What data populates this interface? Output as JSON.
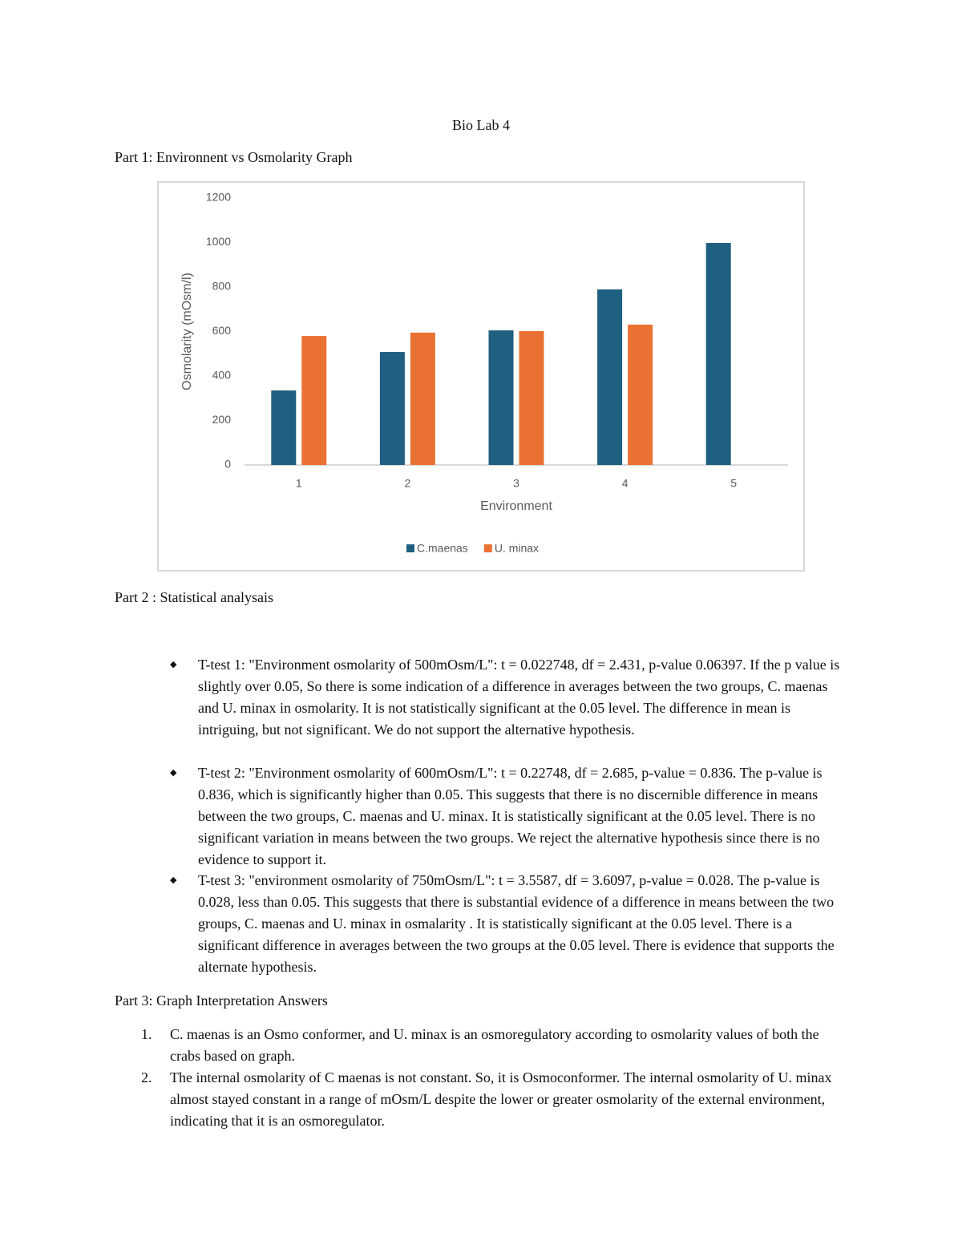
{
  "title": "Bio Lab 4",
  "part1_heading": "Part 1: Environnent vs Osmolarity Graph",
  "chart_data": {
    "type": "bar",
    "xlabel": "Environment",
    "ylabel": "Osmolarity (mOsm/l)",
    "categories": [
      "1",
      "2",
      "3",
      "4",
      "5"
    ],
    "series": [
      {
        "name": "C.maenas",
        "color": "#1f5f80",
        "values": [
          335,
          508,
          605,
          789,
          998
        ]
      },
      {
        "name": "U. minax",
        "color": "#e97132",
        "values": [
          580,
          595,
          602,
          631,
          null
        ]
      }
    ],
    "ylim": [
      0,
      1200
    ],
    "yticks": [
      0,
      200,
      400,
      600,
      800,
      1000,
      1200
    ],
    "legend": "bottom"
  },
  "part2": {
    "heading": "Part 2 : Statistical analysais",
    "bullets": [
      " T-test 1: \"Environment osmolarity of 500mOsm/L\": t = 0.022748, df = 2.431, p-value 0.06397. If the p value is slightly over 0.05, So there is some indication of a difference in averages between the two groups, C. maenas and U. minax in osmolarity. It is not statistically significant at the 0.05 level. The difference in mean is intriguing, but not significant. We do not support the alternative hypothesis.",
      "T-test 2: \"Environment osmolarity of 600mOsm/L\": t = 0.22748, df = 2.685, p-value = 0.836. The p-value is 0.836, which is significantly higher than 0.05. This suggests that there is no discernible difference in means between the two groups, C. maenas and U. minax. It is statistically significant at the 0.05 level. There is no significant variation in means between the two groups. We reject the alternative hypothesis since there is no evidence to support it.",
      "T-test 3: \"environment osmolarity of 750mOsm/L\": t = 3.5587, df = 3.6097, p-value = 0.028. The p-value is 0.028, less than 0.05. This suggests that there is substantial evidence of a difference in means between the two groups, C. maenas and U. minax in osmalarity . It is statistically significant at the 0.05 level. There is a significant difference in averages between the two groups at the 0.05 level. There is evidence that supports the alternate hypothesis."
    ]
  },
  "part3": {
    "heading": "Part 3: Graph Interpretation Answers",
    "items": [
      {
        "number": "1.",
        "text": "C. maenas is an Osmo conformer, and U. minax is an osmoregulatory according to osmolarity values of both the crabs based on graph."
      },
      {
        "number": "2.",
        "text": " The internal osmolarity of C maenas is not constant. So, it is Osmoconformer. The internal osmolarity of U. minax almost stayed constant in a range of mOsm/L despite the lower or greater osmolarity of the external environment, indicating that it is an osmoregulator."
      }
    ]
  }
}
